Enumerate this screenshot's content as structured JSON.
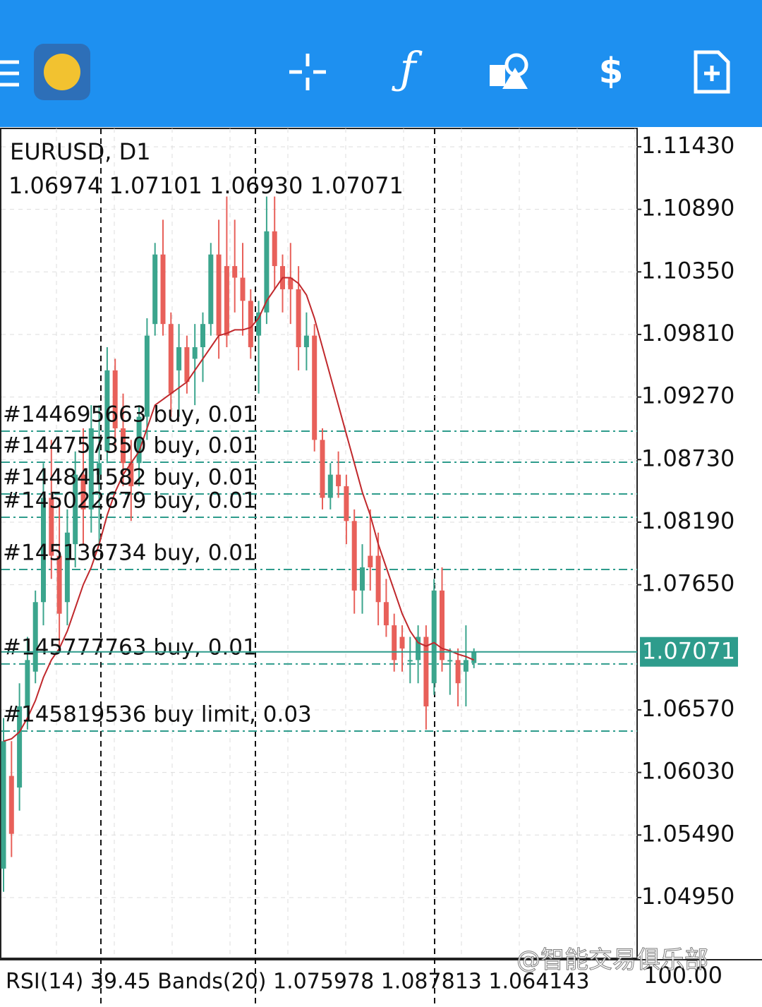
{
  "chart_data": {
    "type": "candlestick",
    "title": "EURUSD, D1",
    "ohlc_text": "1.06974 1.07101 1.06930 1.07071",
    "up_color": "#3ba58d",
    "down_color": "#e8605a",
    "ma_color": "#c0282c",
    "ylim": [
      1.04426,
      1.11588
    ],
    "yticks": [
      {
        "value": 1.1143,
        "label": "1.11430"
      },
      {
        "value": 1.1089,
        "label": "1.10890"
      },
      {
        "value": 1.1035,
        "label": "1.10350"
      },
      {
        "value": 1.0981,
        "label": "1.09810"
      },
      {
        "value": 1.0927,
        "label": "1.09270"
      },
      {
        "value": 1.0873,
        "label": "1.08730"
      },
      {
        "value": 1.0819,
        "label": "1.08190"
      },
      {
        "value": 1.0765,
        "label": "1.07650"
      },
      {
        "value": 1.0657,
        "label": "1.06570"
      },
      {
        "value": 1.0603,
        "label": "1.06030"
      },
      {
        "value": 1.0549,
        "label": "1.05490"
      },
      {
        "value": 1.0495,
        "label": "1.04950"
      }
    ],
    "grid": true,
    "open": [
      1.052,
      1.06,
      1.059,
      1.066,
      1.069,
      1.075,
      1.084,
      1.079,
      1.075,
      1.08,
      1.086,
      1.083,
      1.086,
      1.088,
      1.095,
      1.09,
      1.087,
      1.087,
      1.091,
      1.099,
      1.105,
      1.099,
      1.095,
      1.097,
      1.096,
      1.097,
      1.099,
      1.105,
      1.104,
      1.104,
      1.103,
      1.101,
      1.098,
      1.1,
      1.107,
      1.104,
      1.103,
      1.102,
      1.097,
      1.098,
      1.089,
      1.084,
      1.086,
      1.085,
      1.082,
      1.076,
      1.079,
      1.079,
      1.075,
      1.073,
      1.072,
      1.07,
      1.07,
      1.072,
      1.068,
      1.076,
      1.07,
      1.07,
      1.069,
      1.06974
    ],
    "high": [
      1.065,
      1.063,
      1.068,
      1.072,
      1.076,
      1.087,
      1.089,
      1.084,
      1.083,
      1.088,
      1.09,
      1.092,
      1.092,
      1.097,
      1.096,
      1.093,
      1.089,
      1.092,
      1.0995,
      1.106,
      1.108,
      1.1,
      1.099,
      1.098,
      1.099,
      1.1,
      1.106,
      1.108,
      1.11,
      1.108,
      1.106,
      1.102,
      1.101,
      1.11,
      1.11,
      1.105,
      1.106,
      1.104,
      1.1,
      1.099,
      1.09,
      1.087,
      1.088,
      1.086,
      1.083,
      1.08,
      1.083,
      1.081,
      1.077,
      1.074,
      1.073,
      1.072,
      1.073,
      1.073,
      1.077,
      1.078,
      1.071,
      1.071,
      1.073,
      1.07101
    ],
    "low": [
      1.05,
      1.053,
      1.057,
      1.064,
      1.068,
      1.073,
      1.077,
      1.071,
      1.073,
      1.078,
      1.08,
      1.081,
      1.08,
      1.087,
      1.088,
      1.085,
      1.082,
      1.085,
      1.089,
      1.098,
      1.098,
      1.091,
      1.091,
      1.093,
      1.092,
      1.094,
      1.098,
      1.096,
      1.097,
      1.1,
      1.098,
      1.096,
      1.093,
      1.099,
      1.102,
      1.1,
      1.099,
      1.095,
      1.095,
      1.088,
      1.083,
      1.083,
      1.084,
      1.08,
      1.074,
      1.074,
      1.076,
      1.073,
      1.072,
      1.069,
      1.069,
      1.068,
      1.068,
      1.064,
      1.067,
      1.069,
      1.067,
      1.066,
      1.066,
      1.0693
    ],
    "close": [
      1.063,
      1.055,
      1.066,
      1.07,
      1.075,
      1.084,
      1.079,
      1.074,
      1.081,
      1.086,
      1.083,
      1.09,
      1.087,
      1.095,
      1.09,
      1.087,
      1.085,
      1.091,
      1.098,
      1.105,
      1.099,
      1.093,
      1.097,
      1.094,
      1.097,
      1.099,
      1.105,
      1.098,
      1.098,
      1.103,
      1.101,
      1.097,
      1.1,
      1.107,
      1.104,
      1.102,
      1.102,
      1.097,
      1.098,
      1.089,
      1.084,
      1.086,
      1.085,
      1.082,
      1.076,
      1.078,
      1.078,
      1.075,
      1.073,
      1.07,
      1.071,
      1.07,
      1.072,
      1.066,
      1.076,
      1.07,
      1.07,
      1.068,
      1.07,
      1.07071
    ],
    "ma": [
      1.063,
      1.0632,
      1.0638,
      1.065,
      1.0665,
      1.0685,
      1.07,
      1.071,
      1.0725,
      1.0745,
      1.0765,
      1.078,
      1.08,
      1.0825,
      1.0845,
      1.086,
      1.087,
      1.088,
      1.09,
      1.092,
      1.0925,
      1.093,
      1.0935,
      1.094,
      1.095,
      1.096,
      1.097,
      1.098,
      1.0982,
      1.0985,
      1.0985,
      1.0987,
      1.0995,
      1.101,
      1.102,
      1.103,
      1.103,
      1.1025,
      1.1015,
      1.0995,
      1.097,
      1.0945,
      1.092,
      1.0895,
      1.087,
      1.0845,
      1.0825,
      1.08,
      1.078,
      1.076,
      1.074,
      1.0725,
      1.0715,
      1.0712,
      1.0715,
      1.071,
      1.0708,
      1.0705,
      1.0703,
      1.07
    ],
    "orders": [
      {
        "label": "#144695663 buy, 0.01",
        "price": 1.08975
      },
      {
        "label": "#144757350 buy, 0.01",
        "price": 1.08707
      },
      {
        "label": "#144841582 buy, 0.01",
        "price": 1.08433
      },
      {
        "label": "#145022679 buy, 0.01",
        "price": 1.08232
      },
      {
        "label": "#145136734 buy, 0.01",
        "price": 1.07782
      },
      {
        "label": "#145777763 buy, 0.01",
        "price": 1.06966
      },
      {
        "label": "#145819536 buy limit, 0.03",
        "price": 1.06387
      }
    ],
    "current_price": 1.07071,
    "indicator_text": "RSI(14) 39.45 Bands(20) 1.075978 1.087813 1.064143",
    "indicator_top": "100.00",
    "watermark": "@智能交易俱乐部"
  }
}
